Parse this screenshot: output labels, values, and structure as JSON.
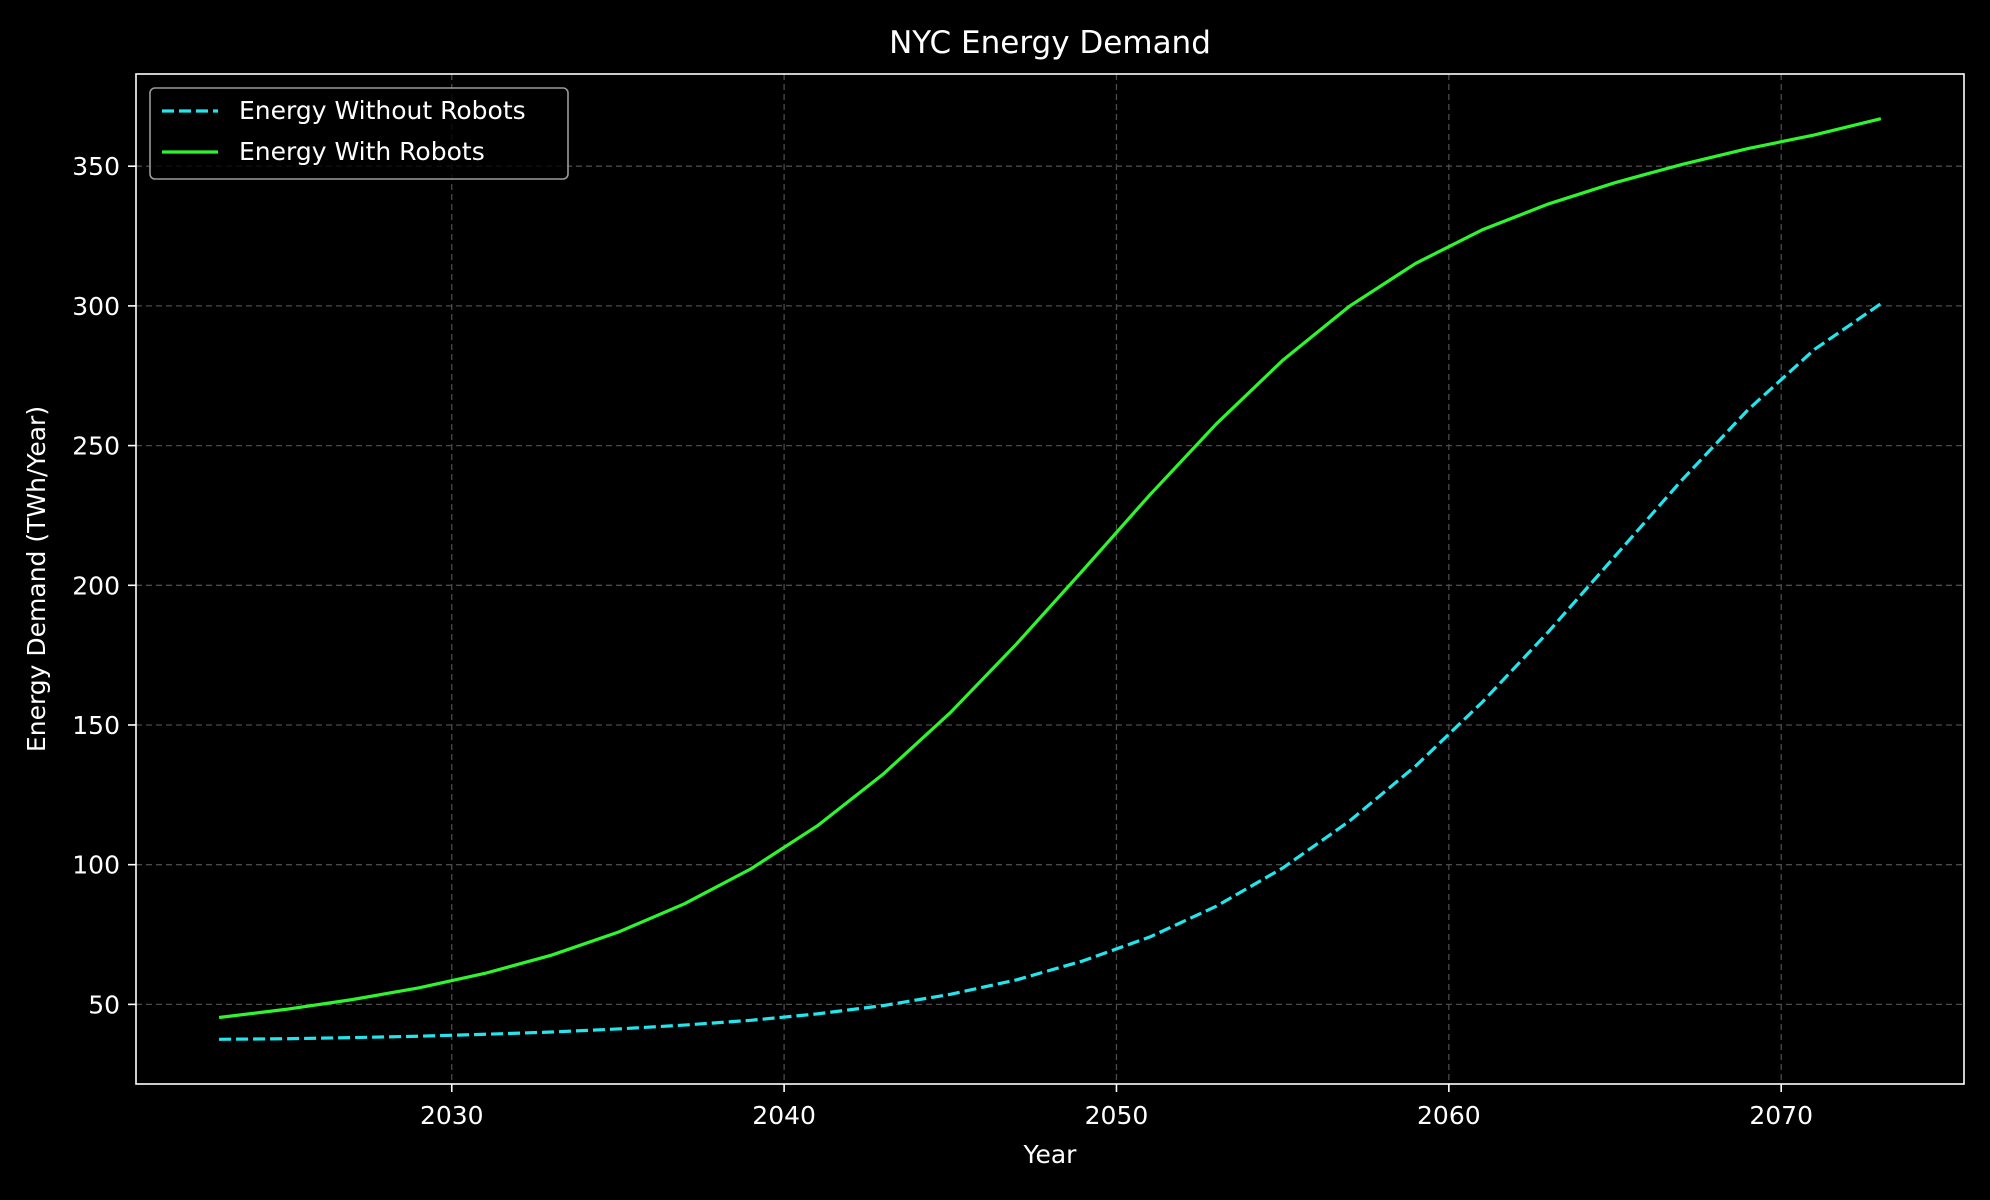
{
  "chart_data": {
    "type": "line",
    "title": "NYC Energy Demand",
    "xlabel": "Year",
    "ylabel": "Energy Demand (TWh/Year)",
    "xlim": [
      2020.5,
      2075.5
    ],
    "ylim": [
      21.5,
      383.0
    ],
    "xticks": [
      2030,
      2040,
      2050,
      2060,
      2070
    ],
    "yticks": [
      50,
      100,
      150,
      200,
      250,
      300,
      350
    ],
    "grid": true,
    "legend_position": "top-left",
    "background": "#000000",
    "series": [
      {
        "name": "Energy Without Robots",
        "color": "#22e5ee",
        "style": "dashed",
        "x": [
          2023,
          2025,
          2027,
          2029,
          2031,
          2033,
          2035,
          2037,
          2039,
          2041,
          2043,
          2045,
          2047,
          2049,
          2051,
          2053,
          2055,
          2057,
          2059,
          2061,
          2063,
          2065,
          2067,
          2069,
          2071,
          2073
        ],
        "values": [
          37.5,
          37.7,
          38.1,
          38.6,
          39.3,
          40.1,
          41.2,
          42.6,
          44.3,
          46.6,
          49.6,
          53.6,
          58.8,
          65.6,
          74.1,
          85.1,
          98.8,
          115.5,
          135.3,
          158.1,
          183.4,
          210.4,
          237.5,
          262.8,
          284.4,
          300.8
        ]
      },
      {
        "name": "Energy With Robots",
        "color": "#2ef52e",
        "style": "solid",
        "x": [
          2023,
          2025,
          2027,
          2029,
          2031,
          2033,
          2035,
          2037,
          2039,
          2041,
          2043,
          2045,
          2047,
          2049,
          2051,
          2053,
          2055,
          2057,
          2059,
          2061,
          2063,
          2065,
          2067,
          2069,
          2071,
          2073
        ],
        "values": [
          45.3,
          48.2,
          51.7,
          55.9,
          61.1,
          67.6,
          75.8,
          86.0,
          98.5,
          113.9,
          132.6,
          154.4,
          179.1,
          205.5,
          232.3,
          257.7,
          280.5,
          299.8,
          315.2,
          327.2,
          336.5,
          344.1,
          350.6,
          356.3,
          361.2,
          367.0
        ]
      }
    ]
  }
}
